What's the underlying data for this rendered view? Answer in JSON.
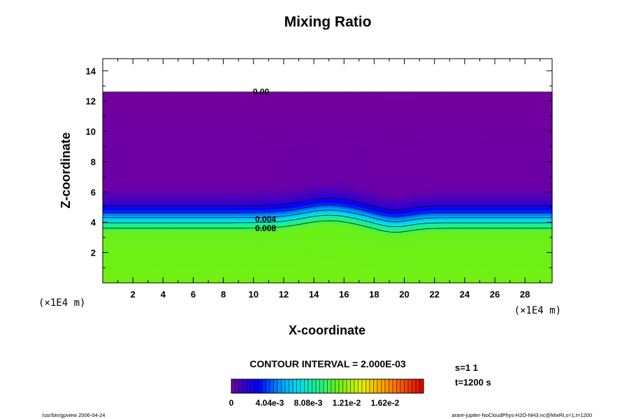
{
  "chart_data": {
    "type": "contour",
    "title": "Mixing Ratio",
    "xlabel": "X-coordinate",
    "ylabel": "Z-coordinate",
    "x_unit": "(×1E4 m)",
    "y_unit": "(×1E4 m)",
    "xlim": [
      0,
      29.8
    ],
    "ylim": [
      0,
      14.8
    ],
    "x_ticks": [
      2,
      4,
      6,
      8,
      10,
      12,
      14,
      16,
      18,
      20,
      22,
      24,
      26,
      28
    ],
    "y_ticks": [
      2,
      4,
      6,
      8,
      10,
      12,
      14
    ],
    "data_top": 12.6,
    "contour_labels": [
      {
        "text": "0.00",
        "x": 10.5,
        "z": 12.6
      },
      {
        "text": "0.004",
        "x": 10.8,
        "z": 4.2
      },
      {
        "text": "0.008",
        "x": 10.8,
        "z": 3.6
      }
    ],
    "contour_interval_text": "CONTOUR INTERVAL = 2.000E-03",
    "colorbar": {
      "min": 0,
      "max": 0.0202,
      "tick_labels": [
        "0",
        "4.04e-3",
        "8.08e-3",
        "1.21e-2",
        "1.62e-2"
      ]
    },
    "profile_z": [
      0,
      3.3,
      3.6,
      3.8,
      4.0,
      4.2,
      4.4,
      4.6,
      4.8,
      5.0,
      5.2,
      5.5,
      5.8,
      6.2,
      12.6
    ],
    "profile_value": [
      0.0114,
      0.0112,
      0.01,
      0.009,
      0.0078,
      0.0066,
      0.0054,
      0.0042,
      0.0032,
      0.0023,
      0.0016,
      0.001,
      0.0006,
      0.0002,
      0.0
    ]
  },
  "meta": {
    "s_text": "s=1 1",
    "t_text": "t=1200 s",
    "footer_left": "/usr/bin/gpview 2006-04-24",
    "footer_right": "arare-jupiter-NoCloudPhys-H2O-NH3.nc@MixRt,s=1,t=1200"
  }
}
